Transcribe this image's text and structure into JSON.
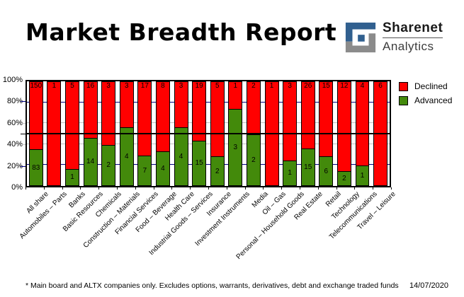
{
  "header": {
    "title": "Market Breadth Report",
    "logo": {
      "brand": "Sharenet",
      "sub": "Analytics"
    }
  },
  "chart_data": {
    "type": "bar",
    "stacked": true,
    "percent_stacked": true,
    "categories": [
      "All share",
      "Automobiles – Parts",
      "Banks",
      "Basic Resources",
      "Chemicals",
      "Construction – Materials",
      "Financial Services",
      "Food – Beverage",
      "Health Care",
      "Industrial Goods – Services",
      "Insurance",
      "Investment Instruments",
      "Media",
      "Oil – Gas",
      "Personal – Household Goods",
      "Real Estate",
      "Retail",
      "Technology",
      "Telecommunications",
      "Travel – Leisure"
    ],
    "series": [
      {
        "name": "Declined",
        "color": "#ff0000",
        "values": [
          150,
          1,
          5,
          16,
          3,
          3,
          17,
          8,
          3,
          19,
          5,
          1,
          2,
          1,
          3,
          26,
          15,
          12,
          4,
          6
        ]
      },
      {
        "name": "Advanced",
        "color": "#438a0b",
        "values": [
          83,
          0,
          1,
          14,
          2,
          4,
          7,
          4,
          4,
          15,
          2,
          3,
          2,
          0,
          1,
          15,
          6,
          2,
          1,
          0
        ]
      }
    ],
    "legend": [
      {
        "label": "Declined",
        "color": "#ff0000"
      },
      {
        "label": "Advanced",
        "color": "#438a0b"
      }
    ],
    "legend_position": "right",
    "ylim": [
      0,
      100
    ],
    "y_tick_labels": [
      "100%",
      "80%",
      "60%",
      "40%",
      "20%",
      "0%"
    ],
    "gridlines": [
      {
        "value": 80,
        "color": "#000080",
        "strong": false
      },
      {
        "value": 60,
        "color": "#c0c0c0",
        "strong": false
      },
      {
        "value": 50,
        "color": "#000000",
        "strong": true
      },
      {
        "value": 40,
        "color": "#c0c0c0",
        "strong": false
      },
      {
        "value": 20,
        "color": "#000080",
        "strong": false
      }
    ]
  },
  "footer": {
    "note": "* Main board and ALTX companies only. Excludes options, warrants, derivatives, debt and exchange traded funds",
    "date": "14/07/2020"
  },
  "colors": {
    "declined": "#ff0000",
    "advanced": "#438a0b",
    "major_grid": "#000080",
    "minor_grid": "#c0c0c0",
    "logo_blue": "#31608f",
    "logo_gray": "#8b8b8b"
  }
}
